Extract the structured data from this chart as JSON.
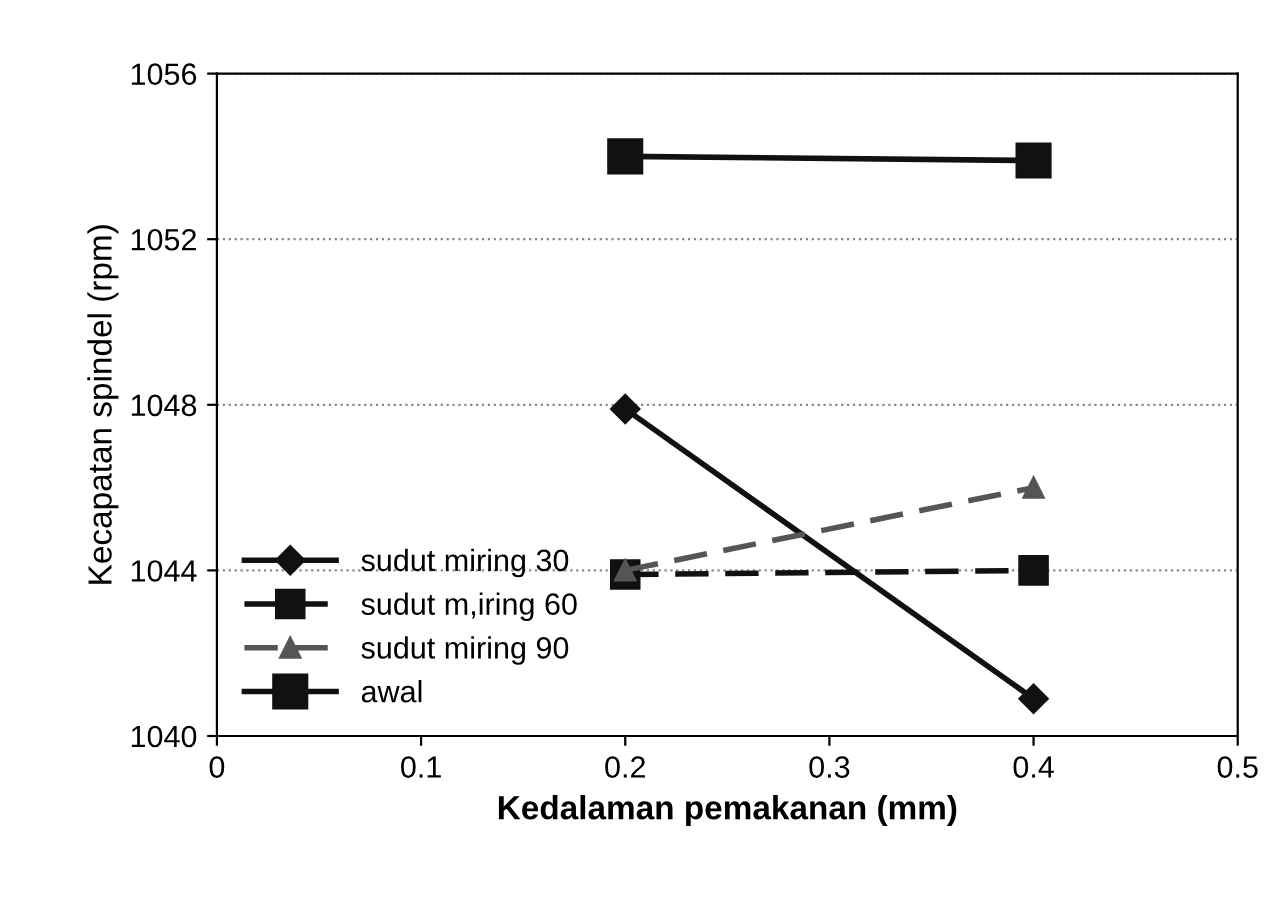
{
  "chart_data": {
    "type": "line",
    "xlabel": "Kedalaman pemakanan (mm)",
    "ylabel": "Kecapatan spindel (rpm)",
    "x": [
      0.2,
      0.4
    ],
    "xlim": [
      0,
      0.5
    ],
    "xticks": [
      0,
      0.1,
      0.2,
      0.3,
      0.4,
      0.5
    ],
    "ylim": [
      1040,
      1056
    ],
    "yticks": [
      1040,
      1044,
      1048,
      1052,
      1056
    ],
    "grid": "y",
    "legend": "bottom left",
    "series": [
      {
        "name": "sudut miring 30",
        "color": "#111111",
        "values": [
          1047.9,
          1040.9
        ],
        "marker": "diamond",
        "line_style": "solid"
      },
      {
        "name": "sudut m,iring 60",
        "color": "#111111",
        "values": [
          1043.9,
          1044.0
        ],
        "marker": "square",
        "line_style": "dashed"
      },
      {
        "name": "sudut miring 90",
        "color": "#555555",
        "values": [
          1044.0,
          1046.0
        ],
        "marker": "triangle",
        "line_style": "dashed"
      },
      {
        "name": "awal",
        "color": "#111111",
        "values": [
          1054.0,
          1053.9
        ],
        "marker": "square",
        "line_style": "solid"
      }
    ]
  }
}
